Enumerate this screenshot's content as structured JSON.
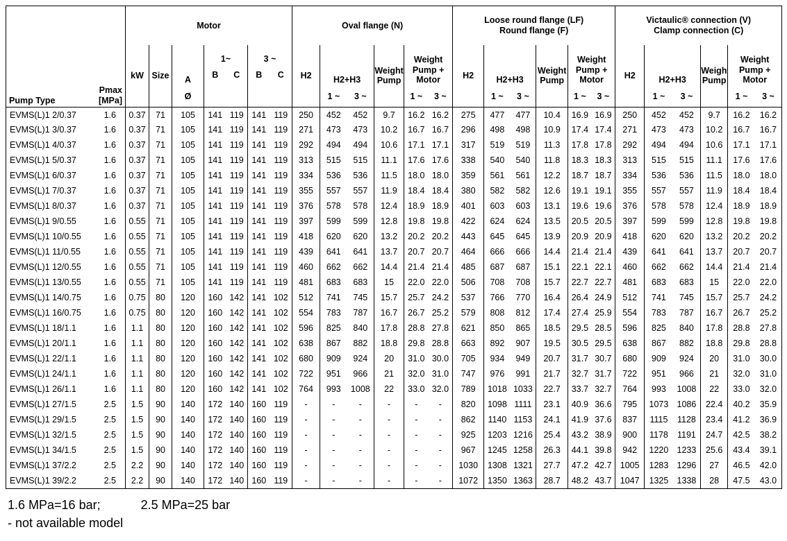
{
  "header": {
    "pump_type_label": "Pump Type",
    "pmax_line1": "Pmax",
    "pmax_line2": "[MPa]",
    "groups": {
      "motor": "Motor",
      "oval": "Oval flange (N)",
      "lf1": "Loose round flange (LF)",
      "lf2": "Round flange (F)",
      "v1": "Victaulic® connection (V)",
      "v2": "Clamp connection (C)"
    },
    "sub": {
      "kw": "kW",
      "size": "Size",
      "a": "A",
      "b": "B",
      "c": "C",
      "one_tilde": "1~",
      "three_tilde": "3 ~",
      "h2": "H2",
      "h2h3": "H2+H3",
      "weight_pump": [
        "Weight",
        "Pump"
      ],
      "weight_pump_motor": [
        "Weight",
        "Pump +",
        "Motor"
      ],
      "diameter": "Ø",
      "one": "1 ~",
      "three": "3 ~"
    }
  },
  "rows": [
    [
      "EVMS(L)1 2/0.37",
      "1.6",
      "0.37",
      "71",
      "105",
      "141",
      "119",
      "141",
      "119",
      "250",
      "452",
      "452",
      "9.7",
      "16.2",
      "16.2",
      "275",
      "477",
      "477",
      "10.4",
      "16.9",
      "16.9",
      "250",
      "452",
      "452",
      "9.7",
      "16.2",
      "16.2"
    ],
    [
      "EVMS(L)1 3/0.37",
      "1.6",
      "0.37",
      "71",
      "105",
      "141",
      "119",
      "141",
      "119",
      "271",
      "473",
      "473",
      "10.2",
      "16.7",
      "16.7",
      "296",
      "498",
      "498",
      "10.9",
      "17.4",
      "17.4",
      "271",
      "473",
      "473",
      "10.2",
      "16.7",
      "16.7"
    ],
    [
      "EVMS(L)1 4/0.37",
      "1.6",
      "0.37",
      "71",
      "105",
      "141",
      "119",
      "141",
      "119",
      "292",
      "494",
      "494",
      "10.6",
      "17.1",
      "17.1",
      "317",
      "519",
      "519",
      "11.3",
      "17.8",
      "17.8",
      "292",
      "494",
      "494",
      "10.6",
      "17.1",
      "17.1"
    ],
    [
      "EVMS(L)1 5/0.37",
      "1.6",
      "0.37",
      "71",
      "105",
      "141",
      "119",
      "141",
      "119",
      "313",
      "515",
      "515",
      "11.1",
      "17.6",
      "17.6",
      "338",
      "540",
      "540",
      "11.8",
      "18.3",
      "18.3",
      "313",
      "515",
      "515",
      "11.1",
      "17.6",
      "17.6"
    ],
    [
      "EVMS(L)1 6/0.37",
      "1.6",
      "0.37",
      "71",
      "105",
      "141",
      "119",
      "141",
      "119",
      "334",
      "536",
      "536",
      "11.5",
      "18.0",
      "18.0",
      "359",
      "561",
      "561",
      "12.2",
      "18.7",
      "18.7",
      "334",
      "536",
      "536",
      "11.5",
      "18.0",
      "18.0"
    ],
    [
      "EVMS(L)1 7/0.37",
      "1.6",
      "0.37",
      "71",
      "105",
      "141",
      "119",
      "141",
      "119",
      "355",
      "557",
      "557",
      "11.9",
      "18.4",
      "18.4",
      "380",
      "582",
      "582",
      "12.6",
      "19.1",
      "19.1",
      "355",
      "557",
      "557",
      "11.9",
      "18.4",
      "18.4"
    ],
    [
      "EVMS(L)1 8/0.37",
      "1.6",
      "0.37",
      "71",
      "105",
      "141",
      "119",
      "141",
      "119",
      "376",
      "578",
      "578",
      "12.4",
      "18.9",
      "18.9",
      "401",
      "603",
      "603",
      "13.1",
      "19.6",
      "19.6",
      "376",
      "578",
      "578",
      "12.4",
      "18.9",
      "18.9"
    ],
    [
      "EVMS(L)1 9/0.55",
      "1.6",
      "0.55",
      "71",
      "105",
      "141",
      "119",
      "141",
      "119",
      "397",
      "599",
      "599",
      "12.8",
      "19.8",
      "19.8",
      "422",
      "624",
      "624",
      "13.5",
      "20.5",
      "20.5",
      "397",
      "599",
      "599",
      "12.8",
      "19.8",
      "19.8"
    ],
    [
      "EVMS(L)1 10/0.55",
      "1.6",
      "0.55",
      "71",
      "105",
      "141",
      "119",
      "141",
      "119",
      "418",
      "620",
      "620",
      "13.2",
      "20.2",
      "20.2",
      "443",
      "645",
      "645",
      "13.9",
      "20.9",
      "20.9",
      "418",
      "620",
      "620",
      "13.2",
      "20.2",
      "20.2"
    ],
    [
      "EVMS(L)1 11/0.55",
      "1.6",
      "0.55",
      "71",
      "105",
      "141",
      "119",
      "141",
      "119",
      "439",
      "641",
      "641",
      "13.7",
      "20.7",
      "20.7",
      "464",
      "666",
      "666",
      "14.4",
      "21.4",
      "21.4",
      "439",
      "641",
      "641",
      "13.7",
      "20.7",
      "20.7"
    ],
    [
      "EVMS(L)1 12/0.55",
      "1.6",
      "0.55",
      "71",
      "105",
      "141",
      "119",
      "141",
      "119",
      "460",
      "662",
      "662",
      "14.4",
      "21.4",
      "21.4",
      "485",
      "687",
      "687",
      "15.1",
      "22.1",
      "22.1",
      "460",
      "662",
      "662",
      "14.4",
      "21.4",
      "21.4"
    ],
    [
      "EVMS(L)1 13/0.55",
      "1.6",
      "0.55",
      "71",
      "105",
      "141",
      "119",
      "141",
      "119",
      "481",
      "683",
      "683",
      "15",
      "22.0",
      "22.0",
      "506",
      "708",
      "708",
      "15.7",
      "22.7",
      "22.7",
      "481",
      "683",
      "683",
      "15",
      "22.0",
      "22.0"
    ],
    [
      "EVMS(L)1 14/0.75",
      "1.6",
      "0.75",
      "80",
      "120",
      "160",
      "142",
      "141",
      "102",
      "512",
      "741",
      "745",
      "15.7",
      "25.7",
      "24.2",
      "537",
      "766",
      "770",
      "16.4",
      "26.4",
      "24.9",
      "512",
      "741",
      "745",
      "15.7",
      "25.7",
      "24.2"
    ],
    [
      "EVMS(L)1 16/0.75",
      "1.6",
      "0.75",
      "80",
      "120",
      "160",
      "142",
      "141",
      "102",
      "554",
      "783",
      "787",
      "16.7",
      "26.7",
      "25.2",
      "579",
      "808",
      "812",
      "17.4",
      "27.4",
      "25.9",
      "554",
      "783",
      "787",
      "16.7",
      "26.7",
      "25.2"
    ],
    [
      "EVMS(L)1 18/1.1",
      "1.6",
      "1.1",
      "80",
      "120",
      "160",
      "142",
      "141",
      "102",
      "596",
      "825",
      "840",
      "17.8",
      "28.8",
      "27.8",
      "621",
      "850",
      "865",
      "18.5",
      "29.5",
      "28.5",
      "596",
      "825",
      "840",
      "17.8",
      "28.8",
      "27.8"
    ],
    [
      "EVMS(L)1 20/1.1",
      "1.6",
      "1.1",
      "80",
      "120",
      "160",
      "142",
      "141",
      "102",
      "638",
      "867",
      "882",
      "18.8",
      "29.8",
      "28.8",
      "663",
      "892",
      "907",
      "19.5",
      "30.5",
      "29.5",
      "638",
      "867",
      "882",
      "18.8",
      "29.8",
      "28.8"
    ],
    [
      "EVMS(L)1 22/1.1",
      "1.6",
      "1.1",
      "80",
      "120",
      "160",
      "142",
      "141",
      "102",
      "680",
      "909",
      "924",
      "20",
      "31.0",
      "30.0",
      "705",
      "934",
      "949",
      "20.7",
      "31.7",
      "30.7",
      "680",
      "909",
      "924",
      "20",
      "31.0",
      "30.0"
    ],
    [
      "EVMS(L)1 24/1.1",
      "1.6",
      "1.1",
      "80",
      "120",
      "160",
      "142",
      "141",
      "102",
      "722",
      "951",
      "966",
      "21",
      "32.0",
      "31.0",
      "747",
      "976",
      "991",
      "21.7",
      "32.7",
      "31.7",
      "722",
      "951",
      "966",
      "21",
      "32.0",
      "31.0"
    ],
    [
      "EVMS(L)1 26/1.1",
      "1.6",
      "1.1",
      "80",
      "120",
      "160",
      "142",
      "141",
      "102",
      "764",
      "993",
      "1008",
      "22",
      "33.0",
      "32.0",
      "789",
      "1018",
      "1033",
      "22.7",
      "33.7",
      "32.7",
      "764",
      "993",
      "1008",
      "22",
      "33.0",
      "32.0"
    ],
    [
      "EVMS(L)1 27/1.5",
      "2.5",
      "1.5",
      "90",
      "140",
      "172",
      "140",
      "160",
      "119",
      "-",
      "-",
      "-",
      "-",
      "-",
      "-",
      "820",
      "1098",
      "1111",
      "23.1",
      "40.9",
      "36.6",
      "795",
      "1073",
      "1086",
      "22.4",
      "40.2",
      "35.9"
    ],
    [
      "EVMS(L)1 29/1.5",
      "2.5",
      "1.5",
      "90",
      "140",
      "172",
      "140",
      "160",
      "119",
      "-",
      "-",
      "-",
      "-",
      "-",
      "-",
      "862",
      "1140",
      "1153",
      "24.1",
      "41.9",
      "37.6",
      "837",
      "1115",
      "1128",
      "23.4",
      "41.2",
      "36.9"
    ],
    [
      "EVMS(L)1 32/1.5",
      "2.5",
      "1.5",
      "90",
      "140",
      "172",
      "140",
      "160",
      "119",
      "-",
      "-",
      "-",
      "-",
      "-",
      "-",
      "925",
      "1203",
      "1216",
      "25.4",
      "43.2",
      "38.9",
      "900",
      "1178",
      "1191",
      "24.7",
      "42.5",
      "38.2"
    ],
    [
      "EVMS(L)1 34/1.5",
      "2.5",
      "1.5",
      "90",
      "140",
      "172",
      "140",
      "160",
      "119",
      "-",
      "-",
      "-",
      "-",
      "-",
      "-",
      "967",
      "1245",
      "1258",
      "26.3",
      "44.1",
      "39.8",
      "942",
      "1220",
      "1233",
      "25.6",
      "43.4",
      "39.1"
    ],
    [
      "EVMS(L)1 37/2.2",
      "2.5",
      "2.2",
      "90",
      "140",
      "172",
      "140",
      "160",
      "119",
      "-",
      "-",
      "-",
      "-",
      "-",
      "-",
      "1030",
      "1308",
      "1321",
      "27.7",
      "47.2",
      "42.7",
      "1005",
      "1283",
      "1296",
      "27",
      "46.5",
      "42.0"
    ],
    [
      "EVMS(L)1 39/2.2",
      "2.5",
      "2.2",
      "90",
      "140",
      "172",
      "140",
      "160",
      "119",
      "-",
      "-",
      "-",
      "-",
      "-",
      "-",
      "1072",
      "1350",
      "1363",
      "28.7",
      "48.2",
      "43.7",
      "1047",
      "1325",
      "1338",
      "28",
      "47.5",
      "43.0"
    ]
  ],
  "notes": {
    "line1_left": "1.6 MPa=16 bar;",
    "line1_right": "2.5 MPa=25 bar",
    "line2": "- not available model"
  }
}
